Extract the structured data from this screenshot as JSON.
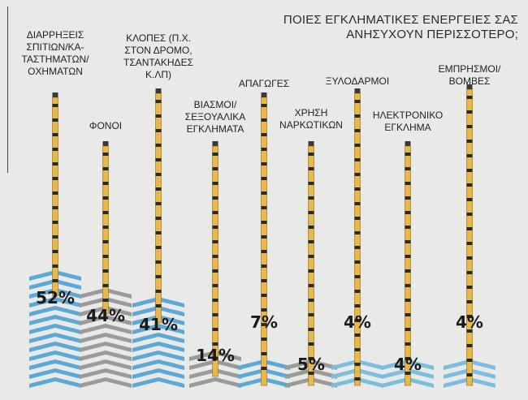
{
  "header": {
    "title_line1": "ΠΟΙΕΣ ΕΓΚΛΗΜΑΤΙΚΕΣ ΕΝΕΡΓΕΙΕΣ ΣΑΣ",
    "title_line2": "ΑΝΗΣΥΧΟΥΝ ΠΕΡΙΣΣΟΤΕΡΟ;"
  },
  "chart_data": {
    "type": "bar",
    "title": "ΠΟΙΕΣ ΕΓΚΛΗΜΑΤΙΚΕΣ ΕΝΕΡΓΕΙΕΣ ΣΑΣ ΑΝΗΣΥΧΟΥΝ ΠΕΡΙΣΣΟΤΕΡΟ;",
    "unit": "%",
    "categories": [
      [
        "ΔΙΑΡΡΗΞΕΙΣ",
        "ΣΠΙΤΙΩΝ/ΚΑ-",
        "ΤΑΣΤΗΜΑΤΩΝ/",
        "ΟΧΗΜΑΤΩΝ"
      ],
      [
        "ΦΟΝΟΙ"
      ],
      [
        "ΚΛΟΠΕΣ (Π.Χ.",
        "ΣΤΟΝ ΔΡΟΜΟ,",
        "ΤΣΑΝΤΑΚΗΔΕΣ",
        "Κ.ΛΠ)"
      ],
      [
        "ΒΙΑΣΜΟΙ/",
        "ΣΕΞΟΥΑΛΙΚΑ",
        "ΕΓΚΛΗΜΑΤΑ"
      ],
      [
        "ΑΠΑΓΩΓΕΣ"
      ],
      [
        "ΧΡΗΣΗ",
        "ΝΑΡΚΩΤΙΚΩΝ"
      ],
      [
        "ΞΥΛΟΔΑΡΜΟΙ"
      ],
      [
        "ΗΛΕΚΤΡΟΝΙΚΟ",
        "ΕΓΚΛΗΜΑ"
      ],
      [
        "ΕΜΠΡΗΣΜΟΙ/",
        "ΒΟΜΒΕΣ"
      ]
    ],
    "values": [
      52,
      44,
      41,
      14,
      7,
      5,
      4,
      4,
      4
    ],
    "value_labels": [
      "52%",
      "44%",
      "41%",
      "14%",
      "7%",
      "5%",
      "4%",
      "4%",
      "4%"
    ],
    "colors": [
      "#5aa9d6",
      "#9a9a9a",
      "#5aa9d6",
      "#9a9a9a",
      "#5aa9d6",
      "#9a9a9a",
      "#7cbde0",
      "#7cbde0",
      "#7cbde0"
    ],
    "pencil_color": "#e8b84a"
  }
}
